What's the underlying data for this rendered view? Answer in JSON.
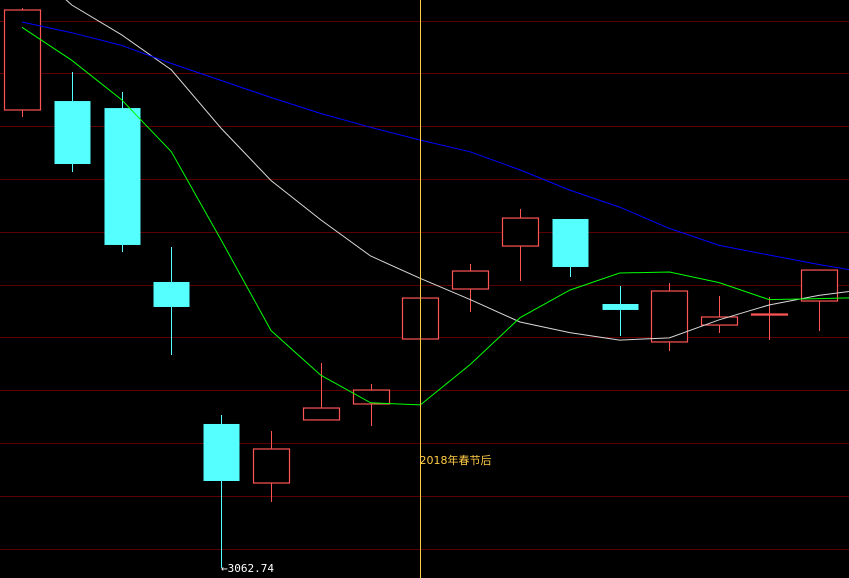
{
  "chart_data": {
    "type": "candlestick",
    "title": "",
    "ylim": [
      3053.3,
      3596.7
    ],
    "grid": true,
    "colors": {
      "background": "#000000",
      "grid": "#5a0000",
      "up": "#ff5555",
      "down": "#55ffff",
      "ma_white": "#d8d8d8",
      "ma_green": "#00ff00",
      "ma_blue": "#0000ff",
      "marker_line": "#ffcc44",
      "marker_text": "#ffcc44",
      "low_label": "#ffffff"
    },
    "candles": [
      {
        "open": 3493.3,
        "close": 3587.3,
        "high": 3589.1,
        "low": 3486.7
      },
      {
        "open": 3501.7,
        "close": 3442.5,
        "high": 3529.0,
        "low": 3435.0
      },
      {
        "open": 3495.1,
        "close": 3366.4,
        "high": 3510.2,
        "low": 3359.8
      },
      {
        "open": 3331.6,
        "close": 3308.1,
        "high": 3364.5,
        "low": 3262.9
      },
      {
        "open": 3198.1,
        "close": 3144.5,
        "high": 3206.6,
        "low": 3062.74
      },
      {
        "open": 3142.6,
        "close": 3174.6,
        "high": 3191.5,
        "low": 3124.8
      },
      {
        "open": 3201.9,
        "close": 3213.1,
        "high": 3255.4,
        "low": 3201.9
      },
      {
        "open": 3216.9,
        "close": 3230.0,
        "high": 3235.7,
        "low": 3196.2
      },
      {
        "open": 3278.0,
        "close": 3316.5,
        "high": 3316.5,
        "low": 3278.0
      },
      {
        "open": 3325.0,
        "close": 3341.9,
        "high": 3348.5,
        "low": 3303.4
      },
      {
        "open": 3365.4,
        "close": 3391.7,
        "high": 3400.2,
        "low": 3332.5
      },
      {
        "open": 3390.8,
        "close": 3345.7,
        "high": 3390.8,
        "low": 3336.3
      },
      {
        "open": 3310.9,
        "close": 3305.3,
        "high": 3327.8,
        "low": 3280.8
      },
      {
        "open": 3275.2,
        "close": 3323.1,
        "high": 3330.6,
        "low": 3266.7
      },
      {
        "open": 3291.1,
        "close": 3298.7,
        "high": 3318.4,
        "low": 3283.6
      },
      {
        "open": 3300.5,
        "close": 3301.5,
        "high": 3317.5,
        "low": 3277.0
      },
      {
        "open": 3313.7,
        "close": 3342.8,
        "high": 3342.8,
        "low": 3285.5
      }
    ],
    "moving_averages": [
      {
        "color_key": "ma_white",
        "values": [
          3634,
          3592,
          3564,
          3531,
          3476,
          3427,
          3390,
          3356,
          3335,
          3315,
          3294,
          3284,
          3277,
          3279,
          3296,
          3310,
          3319,
          3325
        ]
      },
      {
        "color_key": "ma_green",
        "values": [
          3571,
          3540,
          3503,
          3454,
          3371,
          3286,
          3244,
          3218,
          3216,
          3254,
          3298,
          3324,
          3340,
          3341,
          3331,
          3315,
          3316,
          3317
        ]
      },
      {
        "color_key": "ma_blue",
        "values": [
          3576,
          3566,
          3554,
          3537,
          3521,
          3505,
          3490,
          3477,
          3465,
          3454,
          3437,
          3418,
          3402,
          3382,
          3366,
          3357,
          3348,
          3340
        ]
      }
    ],
    "annotations": {
      "marker_index": 8,
      "marker_label": "2018年春节后",
      "low_index": 4,
      "low_label": "←3062.74"
    }
  }
}
